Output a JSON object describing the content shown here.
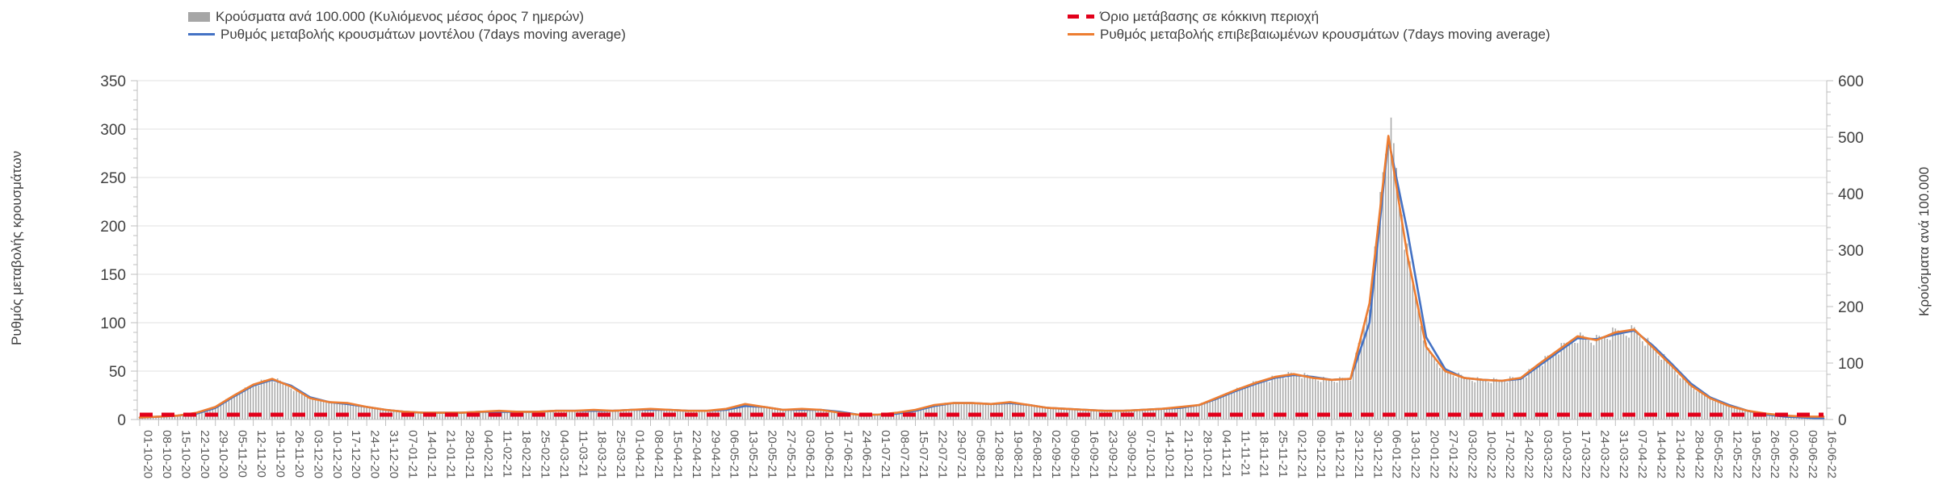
{
  "chart_data": {
    "type": "bar",
    "title": "",
    "legend_position": "top",
    "grid": true,
    "categories": [
      "01-10-20",
      "08-10-20",
      "15-10-20",
      "22-10-20",
      "29-10-20",
      "05-11-20",
      "12-11-20",
      "19-11-20",
      "26-11-20",
      "03-12-20",
      "10-12-20",
      "17-12-20",
      "24-12-20",
      "31-12-20",
      "07-01-21",
      "14-01-21",
      "21-01-21",
      "28-01-21",
      "04-02-21",
      "11-02-21",
      "18-02-21",
      "25-02-21",
      "04-03-21",
      "11-03-21",
      "18-03-21",
      "25-03-21",
      "01-04-21",
      "08-04-21",
      "15-04-21",
      "22-04-21",
      "29-04-21",
      "06-05-21",
      "13-05-21",
      "20-05-21",
      "27-05-21",
      "03-06-21",
      "10-06-21",
      "17-06-21",
      "24-06-21",
      "01-07-21",
      "08-07-21",
      "15-07-21",
      "22-07-21",
      "29-07-21",
      "05-08-21",
      "12-08-21",
      "19-08-21",
      "26-08-21",
      "02-09-21",
      "09-09-21",
      "16-09-21",
      "23-09-21",
      "30-09-21",
      "07-10-21",
      "14-10-21",
      "21-10-21",
      "28-10-21",
      "04-11-21",
      "11-11-21",
      "18-11-21",
      "25-11-21",
      "02-12-21",
      "09-12-21",
      "16-12-21",
      "23-12-21",
      "30-12-21",
      "06-01-22",
      "13-01-22",
      "20-01-22",
      "27-01-22",
      "03-02-22",
      "10-02-22",
      "17-02-22",
      "24-02-22",
      "03-03-22",
      "10-03-22",
      "17-03-22",
      "24-03-22",
      "31-03-22",
      "07-04-22",
      "14-04-22",
      "21-04-22",
      "28-04-22",
      "05-05-22",
      "12-05-22",
      "19-05-22",
      "26-05-22",
      "02-06-22",
      "09-06-22",
      "16-06-22"
    ],
    "series": [
      {
        "name": "Κρούσματα ανά 100.000 (Κυλιόμενος μέσος όρος 7 ημερών)",
        "type": "bar",
        "axis": "right",
        "color": "#a6a6a6",
        "values": [
          3,
          5,
          7,
          12,
          22,
          43,
          62,
          72,
          58,
          38,
          31,
          29,
          22,
          17,
          14,
          12,
          12,
          12,
          14,
          15,
          14,
          14,
          15,
          15,
          17,
          15,
          17,
          19,
          17,
          15,
          15,
          19,
          27,
          22,
          17,
          19,
          17,
          12,
          9,
          9,
          12,
          17,
          26,
          29,
          29,
          27,
          31,
          26,
          21,
          19,
          17,
          15,
          15,
          17,
          19,
          22,
          26,
          39,
          53,
          65,
          75,
          81,
          74,
          70,
          72,
          206,
          502,
          291,
          129,
          86,
          74,
          70,
          69,
          74,
          99,
          123,
          147,
          141,
          154,
          159,
          127,
          94,
          60,
          38,
          24,
          15,
          10,
          7,
          5,
          5
        ]
      },
      {
        "name": "Ρυθμός μεταβολής κρουσμάτων μοντέλου (7days moving average)",
        "type": "line",
        "axis": "left",
        "color": "#4472c4",
        "values": [
          2,
          3,
          4,
          6,
          12,
          24,
          35,
          41,
          35,
          23,
          18,
          16,
          13,
          10,
          8,
          7,
          7,
          7,
          8,
          8,
          8,
          8,
          9,
          9,
          9,
          9,
          10,
          10,
          10,
          9,
          9,
          10,
          14,
          13,
          10,
          10,
          10,
          8,
          5,
          5,
          6,
          9,
          14,
          17,
          17,
          16,
          17,
          15,
          12,
          11,
          10,
          9,
          9,
          10,
          11,
          12,
          15,
          22,
          30,
          37,
          43,
          46,
          44,
          41,
          42,
          100,
          290,
          195,
          85,
          52,
          43,
          41,
          40,
          42,
          56,
          70,
          84,
          83,
          88,
          92,
          76,
          57,
          37,
          23,
          15,
          9,
          5,
          3,
          2,
          1
        ]
      },
      {
        "name": "Ρυθμός μεταβολής επιβεβαιωμένων κρουσμάτων (7days moving average)",
        "type": "line",
        "axis": "left",
        "color": "#ed7d31",
        "values": [
          2,
          3,
          4,
          7,
          13,
          25,
          36,
          42,
          34,
          22,
          18,
          17,
          13,
          10,
          8,
          7,
          7,
          7,
          8,
          9,
          8,
          8,
          9,
          9,
          10,
          9,
          10,
          11,
          10,
          9,
          9,
          11,
          16,
          13,
          10,
          11,
          10,
          7,
          5,
          5,
          7,
          10,
          15,
          17,
          17,
          16,
          18,
          15,
          12,
          11,
          10,
          9,
          9,
          10,
          11,
          13,
          15,
          23,
          31,
          38,
          44,
          47,
          43,
          41,
          42,
          120,
          293,
          170,
          75,
          50,
          43,
          41,
          40,
          43,
          58,
          72,
          86,
          82,
          90,
          93,
          74,
          55,
          35,
          22,
          14,
          9,
          6,
          4,
          3,
          3
        ]
      },
      {
        "name": "Όριο μετάβασης σε κόκκινη περιοχή",
        "type": "threshold",
        "axis": "left",
        "color": "#e2001a",
        "value": 5
      }
    ],
    "left_axis": {
      "label": "Ρυθμός μεταβολής κρουσμάτων",
      "range": [
        0,
        350
      ],
      "tick_step": 50,
      "ticks": [
        0,
        50,
        100,
        150,
        200,
        250,
        300,
        350
      ]
    },
    "right_axis": {
      "label": "Κρούσματα ανά 100.000",
      "range": [
        0,
        600
      ],
      "tick_step": 100,
      "ticks": [
        0,
        100,
        200,
        300,
        400,
        500,
        600
      ]
    }
  }
}
